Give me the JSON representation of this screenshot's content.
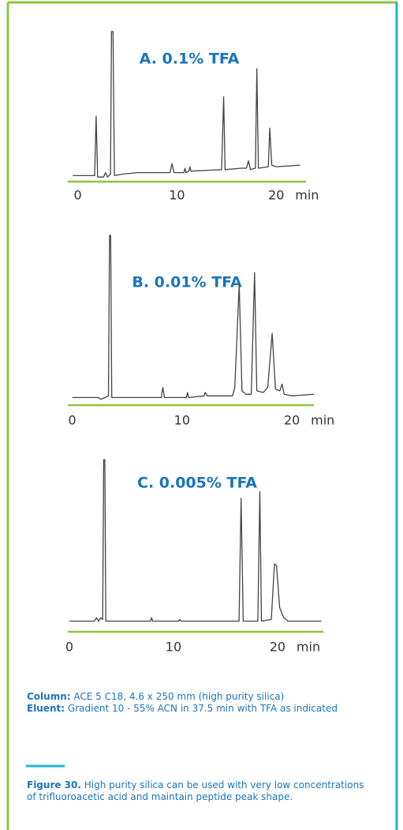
{
  "chart_data": [
    {
      "type": "line",
      "title": "A. 0.1% TFA",
      "x_label": "min",
      "color": "#444444",
      "xlim": [
        -1,
        23
      ],
      "xticks": [
        0,
        10,
        20
      ],
      "ylim": [
        0,
        100
      ],
      "x": [
        -0.5,
        1.7,
        1.85,
        2.0,
        2.6,
        2.8,
        3.0,
        3.3,
        3.4,
        3.55,
        3.7,
        4.5,
        6,
        9.3,
        9.5,
        9.7,
        10.7,
        10.8,
        10.9,
        11.2,
        11.3,
        11.4,
        14.5,
        14.7,
        14.85,
        16.5,
        17.0,
        17.2,
        17.4,
        17.9,
        18.05,
        18.2,
        19.2,
        19.35,
        19.55,
        20,
        22.4
      ],
      "values": [
        3,
        3,
        43,
        2,
        2,
        5,
        2,
        4,
        100,
        100,
        3,
        4,
        5,
        5,
        11,
        5,
        5,
        8,
        5,
        6,
        9,
        6,
        7,
        56,
        7,
        8,
        8,
        13,
        7,
        8,
        75,
        8,
        9,
        35,
        10,
        9,
        10
      ]
    },
    {
      "type": "line",
      "title": "B. 0.01% TFA",
      "x_label": "min",
      "color": "#444444",
      "xlim": [
        -0.4,
        22
      ],
      "xticks": [
        0,
        10,
        20
      ],
      "ylim": [
        0,
        100
      ],
      "x": [
        0,
        2.4,
        2.6,
        3.0,
        3.3,
        3.4,
        3.5,
        3.6,
        5,
        8.1,
        8.25,
        8.4,
        10.4,
        10.5,
        10.6,
        12,
        12.1,
        12.3,
        14.6,
        14.8,
        15.2,
        15.45,
        15.8,
        16.3,
        16.6,
        16.8,
        17.4,
        17.8,
        18.2,
        18.5,
        18.9,
        19.1,
        19.3,
        20,
        22
      ],
      "values": [
        4,
        4,
        3,
        4,
        5,
        100,
        100,
        4,
        4,
        4,
        10,
        4,
        4,
        7,
        4,
        5,
        7,
        5,
        5,
        10,
        71,
        8,
        6,
        6,
        78,
        8,
        7,
        10,
        42,
        9,
        8,
        12,
        6,
        5,
        6
      ]
    },
    {
      "type": "line",
      "title": "C. 0.005% TFA",
      "x_label": "min",
      "color": "#444444",
      "xlim": [
        -0.15,
        24.4
      ],
      "xticks": [
        0,
        10,
        20
      ],
      "ylim": [
        0,
        100
      ],
      "x": [
        0,
        2.4,
        2.6,
        2.8,
        3.0,
        3.2,
        3.3,
        3.4,
        3.5,
        5,
        7.8,
        7.9,
        8.0,
        10.5,
        10.6,
        10.7,
        16.3,
        16.5,
        16.7,
        18.1,
        18.3,
        18.45,
        19.4,
        19.7,
        19.9,
        20.2,
        20.6,
        21,
        24.2
      ],
      "values": [
        4,
        4,
        6,
        4,
        6,
        5,
        100,
        100,
        4,
        4,
        4,
        6,
        4,
        4,
        5,
        4,
        4,
        77,
        4,
        4,
        81,
        4,
        5,
        38,
        37,
        12,
        6,
        4,
        4
      ]
    }
  ],
  "notes": {
    "column": {
      "label": "Column:",
      "text": "ACE 5 C18, 4.6 x 250 mm (high purity silica)"
    },
    "eluent": {
      "label": "Eluent:",
      "text": "Gradient 10 - 55% ACN in 37.5 min with TFA as indicated"
    }
  },
  "caption": {
    "label": "Figure 30.",
    "text": "High purity silica can be used with very low concentrations of trifluoroacetic acid and maintain peptide peak shape."
  }
}
